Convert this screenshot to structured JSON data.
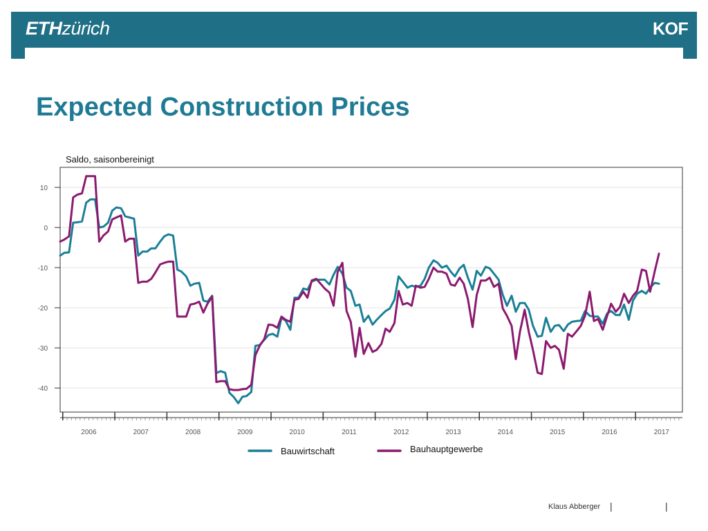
{
  "header": {
    "eth_logo_bold": "ETH",
    "eth_logo_light": "zürich",
    "kof_logo": "KOF",
    "bar_color": "#1f6f86"
  },
  "page": {
    "title": "Expected Construction Prices",
    "title_color": "#1f7a94"
  },
  "footer": {
    "author": "Klaus Abberger",
    "separator": "|"
  },
  "chart_data": {
    "type": "line",
    "ylabel": "Saldo, saisonbereinigt",
    "ylim": [
      -46,
      15
    ],
    "yticks": [
      10,
      0,
      -10,
      -20,
      -30,
      -40
    ],
    "xlim": [
      2005.45,
      2017.4
    ],
    "xticks": [
      "2006",
      "2007",
      "2008",
      "2009",
      "2010",
      "2011",
      "2012",
      "2013",
      "2014",
      "2015",
      "2016",
      "2017"
    ],
    "grid": true,
    "legend": "bottom",
    "series": [
      {
        "name": "Bauwirtschaft",
        "color": "#1a7f96",
        "points": [
          [
            2005.45,
            -7
          ],
          [
            2005.53,
            -6.3
          ],
          [
            2005.62,
            -6.2
          ],
          [
            2005.7,
            1.2
          ],
          [
            2005.78,
            1.3
          ],
          [
            2005.87,
            1.5
          ],
          [
            2005.95,
            6.2
          ],
          [
            2006.03,
            7
          ],
          [
            2006.12,
            7
          ],
          [
            2006.2,
            0
          ],
          [
            2006.28,
            0.2
          ],
          [
            2006.37,
            1.2
          ],
          [
            2006.45,
            4.2
          ],
          [
            2006.53,
            5
          ],
          [
            2006.62,
            4.8
          ],
          [
            2006.7,
            2.8
          ],
          [
            2006.78,
            2.5
          ],
          [
            2006.87,
            2.2
          ],
          [
            2006.95,
            -7
          ],
          [
            2007.03,
            -6
          ],
          [
            2007.12,
            -6
          ],
          [
            2007.2,
            -5.2
          ],
          [
            2007.28,
            -5.2
          ],
          [
            2007.37,
            -3.5
          ],
          [
            2007.45,
            -2.2
          ],
          [
            2007.53,
            -1.7
          ],
          [
            2007.62,
            -2
          ],
          [
            2007.7,
            -10.5
          ],
          [
            2007.78,
            -11
          ],
          [
            2007.87,
            -12.2
          ],
          [
            2007.95,
            -14.5
          ],
          [
            2008.03,
            -14
          ],
          [
            2008.12,
            -13.8
          ],
          [
            2008.2,
            -18.2
          ],
          [
            2008.28,
            -18.5
          ],
          [
            2008.37,
            -17
          ],
          [
            2008.45,
            -36.3
          ],
          [
            2008.53,
            -35.8
          ],
          [
            2008.62,
            -36.2
          ],
          [
            2008.7,
            -41.2
          ],
          [
            2008.78,
            -42.2
          ],
          [
            2008.87,
            -43.8
          ],
          [
            2008.95,
            -42.2
          ],
          [
            2009.03,
            -42
          ],
          [
            2009.12,
            -41
          ],
          [
            2009.2,
            -29.5
          ],
          [
            2009.28,
            -29.3
          ],
          [
            2009.37,
            -28
          ],
          [
            2009.45,
            -26.8
          ],
          [
            2009.53,
            -26.5
          ],
          [
            2009.62,
            -27.2
          ],
          [
            2009.7,
            -22.5
          ],
          [
            2009.78,
            -23.2
          ],
          [
            2009.87,
            -25.5
          ],
          [
            2009.95,
            -17.5
          ],
          [
            2010.03,
            -17.5
          ],
          [
            2010.12,
            -15.2
          ],
          [
            2010.2,
            -15.5
          ],
          [
            2010.28,
            -13.5
          ],
          [
            2010.37,
            -13
          ],
          [
            2010.45,
            -13
          ],
          [
            2010.53,
            -13
          ],
          [
            2010.62,
            -14.2
          ],
          [
            2010.7,
            -11.8
          ],
          [
            2010.78,
            -9.8
          ],
          [
            2010.87,
            -11.5
          ],
          [
            2010.95,
            -15
          ],
          [
            2011.03,
            -15.8
          ],
          [
            2011.12,
            -19.5
          ],
          [
            2011.2,
            -19.2
          ],
          [
            2011.28,
            -23.5
          ],
          [
            2011.37,
            -22
          ],
          [
            2011.45,
            -24.2
          ],
          [
            2011.53,
            -23
          ],
          [
            2011.62,
            -21.8
          ],
          [
            2011.7,
            -20.8
          ],
          [
            2011.78,
            -20.2
          ],
          [
            2011.87,
            -18
          ],
          [
            2011.95,
            -12.2
          ],
          [
            2012.03,
            -13.5
          ],
          [
            2012.12,
            -15
          ],
          [
            2012.2,
            -14.5
          ],
          [
            2012.28,
            -14.8
          ],
          [
            2012.37,
            -14.5
          ],
          [
            2012.45,
            -12.8
          ],
          [
            2012.53,
            -10
          ],
          [
            2012.62,
            -8.2
          ],
          [
            2012.7,
            -8.8
          ],
          [
            2012.78,
            -10
          ],
          [
            2012.87,
            -9.5
          ],
          [
            2012.95,
            -11
          ],
          [
            2013.03,
            -12.2
          ],
          [
            2013.12,
            -10.2
          ],
          [
            2013.2,
            -9.3
          ],
          [
            2013.28,
            -12.5
          ],
          [
            2013.37,
            -15.5
          ],
          [
            2013.45,
            -10.8
          ],
          [
            2013.53,
            -12
          ],
          [
            2013.62,
            -9.8
          ],
          [
            2013.7,
            -10.2
          ],
          [
            2013.78,
            -11.5
          ],
          [
            2013.87,
            -13
          ],
          [
            2013.95,
            -16.8
          ],
          [
            2014.03,
            -19.5
          ],
          [
            2014.12,
            -17
          ],
          [
            2014.2,
            -21
          ],
          [
            2014.28,
            -18.8
          ],
          [
            2014.37,
            -18.8
          ],
          [
            2014.45,
            -20.5
          ],
          [
            2014.53,
            -24.5
          ],
          [
            2014.62,
            -27.2
          ],
          [
            2014.7,
            -27
          ],
          [
            2014.78,
            -22.5
          ],
          [
            2014.87,
            -26
          ],
          [
            2014.95,
            -24.5
          ],
          [
            2015.03,
            -24.3
          ],
          [
            2015.12,
            -25.8
          ],
          [
            2015.2,
            -24.2
          ],
          [
            2015.28,
            -23.5
          ],
          [
            2015.37,
            -23.3
          ],
          [
            2015.45,
            -23.2
          ],
          [
            2015.53,
            -20.8
          ],
          [
            2015.62,
            -22
          ],
          [
            2015.7,
            -22.2
          ],
          [
            2015.78,
            -22.2
          ],
          [
            2015.87,
            -24
          ],
          [
            2015.95,
            -21.5
          ],
          [
            2016.03,
            -20.8
          ],
          [
            2016.12,
            -21.8
          ],
          [
            2016.2,
            -21.8
          ],
          [
            2016.28,
            -19.2
          ],
          [
            2016.37,
            -23
          ],
          [
            2016.45,
            -18.2
          ],
          [
            2016.53,
            -16.5
          ],
          [
            2016.62,
            -15.8
          ],
          [
            2016.7,
            -16.5
          ],
          [
            2016.78,
            -15
          ],
          [
            2016.87,
            -13.8
          ],
          [
            2016.95,
            -14
          ]
        ]
      },
      {
        "name": "Bauhauptgewerbe",
        "color": "#8b1a6e",
        "points": [
          [
            2005.45,
            -3.5
          ],
          [
            2005.53,
            -3
          ],
          [
            2005.62,
            -2.2
          ],
          [
            2005.7,
            7.5
          ],
          [
            2005.78,
            8.2
          ],
          [
            2005.87,
            8.5
          ],
          [
            2005.95,
            12.8
          ],
          [
            2006.03,
            12.8
          ],
          [
            2006.12,
            12.8
          ],
          [
            2006.2,
            -3.5
          ],
          [
            2006.28,
            -2
          ],
          [
            2006.37,
            -1
          ],
          [
            2006.45,
            2
          ],
          [
            2006.53,
            2.5
          ],
          [
            2006.62,
            3
          ],
          [
            2006.7,
            -3.5
          ],
          [
            2006.78,
            -2.8
          ],
          [
            2006.87,
            -2.8
          ],
          [
            2006.95,
            -13.8
          ],
          [
            2007.03,
            -13.5
          ],
          [
            2007.12,
            -13.5
          ],
          [
            2007.2,
            -12.8
          ],
          [
            2007.28,
            -11.2
          ],
          [
            2007.37,
            -9.2
          ],
          [
            2007.45,
            -8.8
          ],
          [
            2007.53,
            -8.5
          ],
          [
            2007.62,
            -8.5
          ],
          [
            2007.7,
            -22.2
          ],
          [
            2007.78,
            -22.2
          ],
          [
            2007.87,
            -22.2
          ],
          [
            2007.95,
            -19.2
          ],
          [
            2008.03,
            -19
          ],
          [
            2008.12,
            -18.5
          ],
          [
            2008.2,
            -21.2
          ],
          [
            2008.28,
            -19
          ],
          [
            2008.37,
            -17.2
          ],
          [
            2008.45,
            -38.5
          ],
          [
            2008.53,
            -38.3
          ],
          [
            2008.62,
            -38.3
          ],
          [
            2008.7,
            -40.3
          ],
          [
            2008.78,
            -40.5
          ],
          [
            2008.87,
            -40.5
          ],
          [
            2008.95,
            -40.3
          ],
          [
            2009.03,
            -40.2
          ],
          [
            2009.12,
            -39.2
          ],
          [
            2009.2,
            -31.8
          ],
          [
            2009.28,
            -29.5
          ],
          [
            2009.37,
            -27.8
          ],
          [
            2009.45,
            -24.2
          ],
          [
            2009.53,
            -24.3
          ],
          [
            2009.62,
            -25
          ],
          [
            2009.7,
            -22.2
          ],
          [
            2009.78,
            -23
          ],
          [
            2009.87,
            -23.5
          ],
          [
            2009.95,
            -18
          ],
          [
            2010.03,
            -17.8
          ],
          [
            2010.12,
            -16
          ],
          [
            2010.2,
            -17.5
          ],
          [
            2010.28,
            -13.2
          ],
          [
            2010.37,
            -12.8
          ],
          [
            2010.45,
            -14
          ],
          [
            2010.53,
            -15.2
          ],
          [
            2010.62,
            -16.2
          ],
          [
            2010.7,
            -19.5
          ],
          [
            2010.78,
            -11
          ],
          [
            2010.87,
            -8.8
          ],
          [
            2010.95,
            -20.8
          ],
          [
            2011.03,
            -23.5
          ],
          [
            2011.12,
            -32.2
          ],
          [
            2011.2,
            -25
          ],
          [
            2011.28,
            -31.5
          ],
          [
            2011.37,
            -28.8
          ],
          [
            2011.45,
            -31
          ],
          [
            2011.53,
            -30.5
          ],
          [
            2011.62,
            -29
          ],
          [
            2011.7,
            -25.2
          ],
          [
            2011.78,
            -26
          ],
          [
            2011.87,
            -23.8
          ],
          [
            2011.95,
            -15.8
          ],
          [
            2012.03,
            -19.2
          ],
          [
            2012.12,
            -18.8
          ],
          [
            2012.2,
            -19.5
          ],
          [
            2012.28,
            -14.5
          ],
          [
            2012.37,
            -15
          ],
          [
            2012.45,
            -14.8
          ],
          [
            2012.53,
            -12.8
          ],
          [
            2012.62,
            -10
          ],
          [
            2012.7,
            -11
          ],
          [
            2012.78,
            -11
          ],
          [
            2012.87,
            -11.5
          ],
          [
            2012.95,
            -14.2
          ],
          [
            2013.03,
            -14.5
          ],
          [
            2013.12,
            -12.5
          ],
          [
            2013.2,
            -14
          ],
          [
            2013.28,
            -17.8
          ],
          [
            2013.37,
            -24.8
          ],
          [
            2013.45,
            -16.8
          ],
          [
            2013.53,
            -13.2
          ],
          [
            2013.62,
            -13.2
          ],
          [
            2013.7,
            -12.5
          ],
          [
            2013.78,
            -14.8
          ],
          [
            2013.87,
            -14
          ],
          [
            2013.95,
            -20.2
          ],
          [
            2014.03,
            -22
          ],
          [
            2014.12,
            -24.5
          ],
          [
            2014.2,
            -32.8
          ],
          [
            2014.28,
            -26
          ],
          [
            2014.37,
            -20.5
          ],
          [
            2014.45,
            -26
          ],
          [
            2014.53,
            -30.5
          ],
          [
            2014.62,
            -36.2
          ],
          [
            2014.7,
            -36.5
          ],
          [
            2014.78,
            -28.3
          ],
          [
            2014.87,
            -30
          ],
          [
            2014.95,
            -29.5
          ],
          [
            2015.03,
            -30.5
          ],
          [
            2015.12,
            -35.2
          ],
          [
            2015.2,
            -26.5
          ],
          [
            2015.28,
            -27.2
          ],
          [
            2015.37,
            -25.8
          ],
          [
            2015.45,
            -24.5
          ],
          [
            2015.53,
            -22
          ],
          [
            2015.62,
            -16
          ],
          [
            2015.7,
            -23.3
          ],
          [
            2015.78,
            -22.8
          ],
          [
            2015.87,
            -25.5
          ],
          [
            2015.95,
            -22.2
          ],
          [
            2016.03,
            -19
          ],
          [
            2016.12,
            -21
          ],
          [
            2016.2,
            -19.8
          ],
          [
            2016.28,
            -16.5
          ],
          [
            2016.37,
            -18.8
          ],
          [
            2016.45,
            -17
          ],
          [
            2016.53,
            -15.8
          ],
          [
            2016.62,
            -10.5
          ],
          [
            2016.7,
            -10.8
          ],
          [
            2016.78,
            -16
          ],
          [
            2016.87,
            -10.8
          ],
          [
            2016.95,
            -6.5
          ]
        ]
      }
    ]
  }
}
